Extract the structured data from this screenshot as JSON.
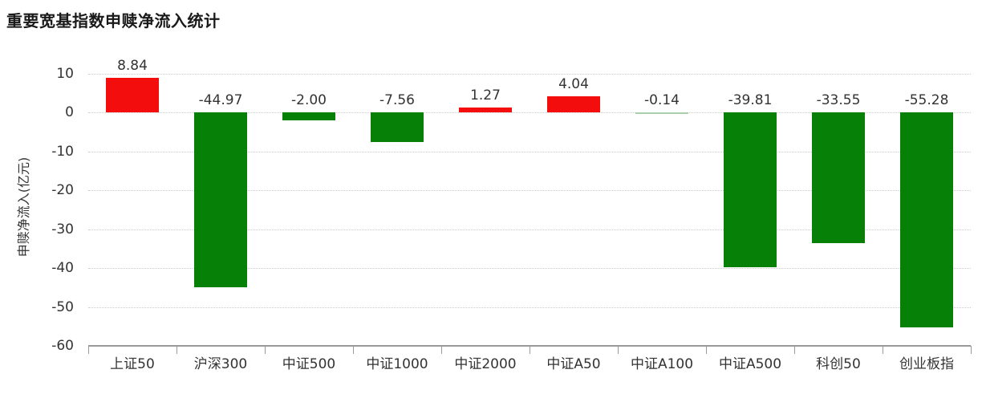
{
  "header": {
    "title": "重要宽基指数申赎净流入统计"
  },
  "chart_data": {
    "type": "bar",
    "title": "重要宽基指数申赎净流入统计",
    "categories": [
      "上证50",
      "沪深300",
      "中证500",
      "中证1000",
      "中证2000",
      "中证A50",
      "中证A100",
      "中证A500",
      "科创50",
      "创业板指"
    ],
    "values": [
      8.84,
      -44.97,
      -2.0,
      -7.56,
      1.27,
      4.04,
      -0.14,
      -39.81,
      -33.55,
      -55.28
    ],
    "value_labels": [
      "8.84",
      "-44.97",
      "-2.00",
      "-7.56",
      "1.27",
      "4.04",
      "-0.14",
      "-39.81",
      "-33.55",
      "-55.28"
    ],
    "xlabel": "",
    "ylabel": "申赎净流入(亿元)",
    "yticks": [
      10,
      0,
      -10,
      -20,
      -30,
      -40,
      -50,
      -60
    ],
    "ylim": [
      -60,
      10
    ],
    "grid": "horizontal dotted",
    "legend": "none",
    "colors": {
      "positive": "#f30d0d",
      "negative": "#068006",
      "negative_thin": "#aacfaa",
      "axis": "#999999",
      "grid": "#cccccc",
      "text": "#333333",
      "title": "#1a1a1a"
    }
  }
}
